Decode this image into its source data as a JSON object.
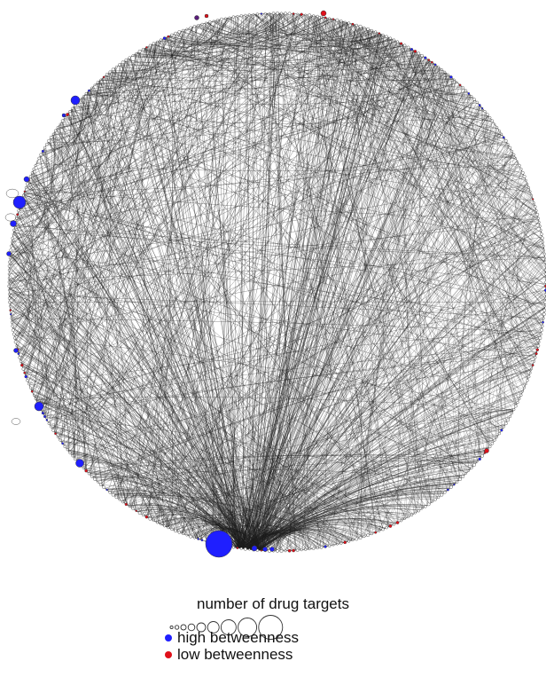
{
  "legend": {
    "title": "number of drug targets",
    "high_label": "high betweenness",
    "low_label": "low betweenness",
    "high_color": "#1f1fff",
    "low_color": "#e0101a"
  },
  "colors": {
    "edge": "#1a1a1a",
    "node_outline": "#333333",
    "node_plain": "#ffffff",
    "node_purple": "#5a1e7a"
  }
}
